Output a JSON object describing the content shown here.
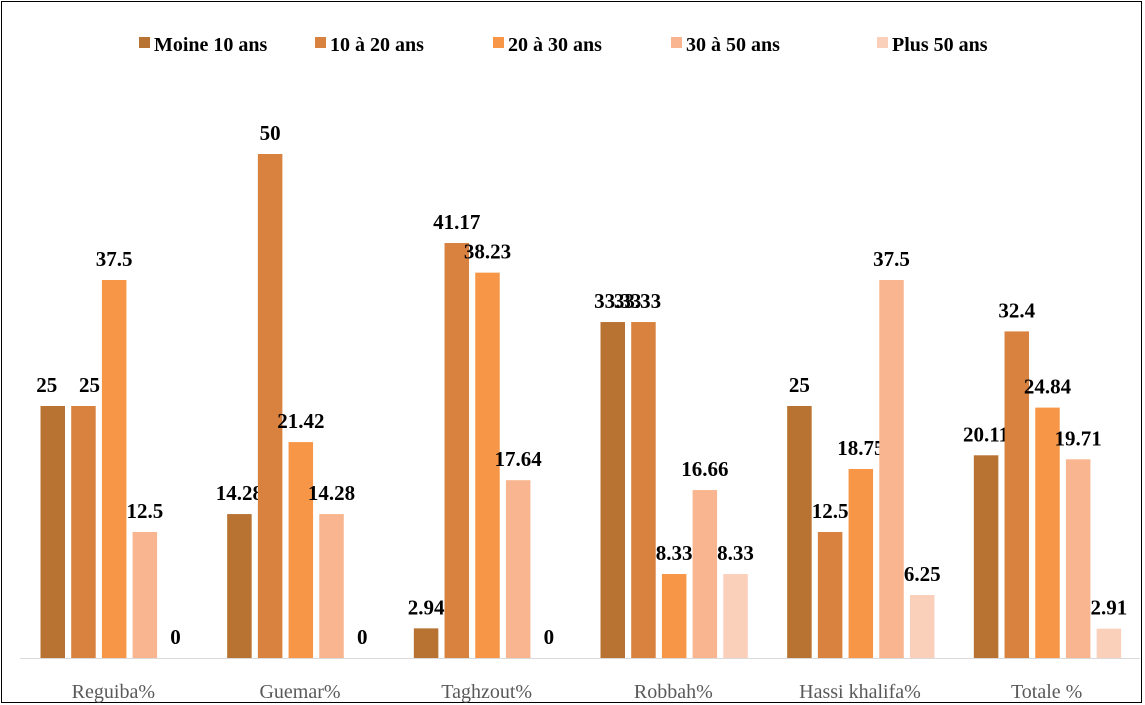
{
  "chart_data": {
    "type": "bar",
    "categories": [
      "Reguiba%",
      "Guemar%",
      "Taghzout%",
      "Robbah%",
      "Hassi khalifa%",
      "Totale %"
    ],
    "series": [
      {
        "name": "Moine 10 ans",
        "color": "#b87333",
        "values": [
          25,
          14.28,
          2.94,
          33.33,
          25,
          20.11
        ]
      },
      {
        "name": "10 à 20 ans",
        "color": "#d9823f",
        "values": [
          25,
          50,
          41.17,
          33.33,
          12.5,
          32.4
        ]
      },
      {
        "name": "20 à 30 ans",
        "color": "#f79646",
        "values": [
          37.5,
          21.42,
          38.23,
          8.33,
          18.75,
          24.84
        ]
      },
      {
        "name": "30 à 50 ans",
        "color": "#f8b58f",
        "values": [
          12.5,
          14.28,
          17.64,
          16.66,
          37.5,
          19.71
        ]
      },
      {
        "name": "Plus 50 ans",
        "color": "#fbd0bb",
        "values": [
          0,
          0,
          0,
          8.33,
          6.25,
          2.91
        ]
      }
    ],
    "labels": [
      [
        "25",
        "25",
        "37.5",
        "12.5",
        "0"
      ],
      [
        "14.28",
        "50",
        "21.42",
        "14.28",
        "0"
      ],
      [
        "2.94",
        "41.17",
        "38.23",
        "17.64",
        "0"
      ],
      [
        "33.33",
        "33.33",
        "8.33",
        "16.66",
        "8.33"
      ],
      [
        "25",
        "12.5",
        "18.75",
        "37.5",
        "6.25"
      ],
      [
        "20.11",
        "32.4",
        "24.84",
        "19.71",
        "2.91"
      ]
    ],
    "ylim": [
      0,
      60
    ],
    "grid": false,
    "legend": "top"
  }
}
